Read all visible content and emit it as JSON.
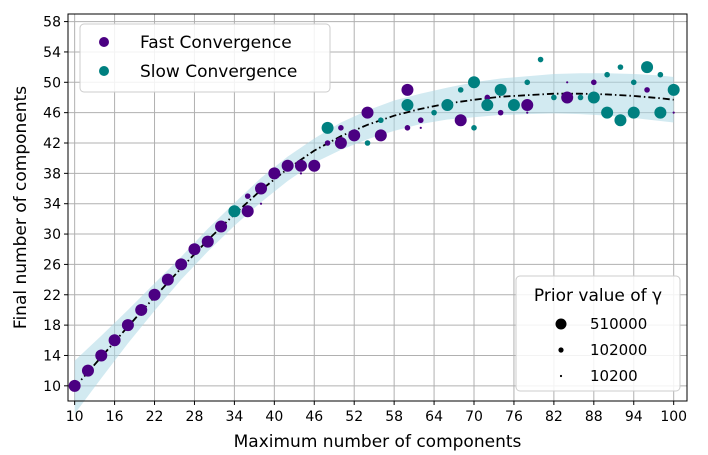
{
  "chart_data": {
    "type": "scatter",
    "title": "",
    "xlabel": "Maximum number of components",
    "ylabel": "Final number of components",
    "xlim": [
      9,
      102
    ],
    "ylim": [
      8,
      59
    ],
    "xticks": [
      10,
      16,
      22,
      28,
      34,
      40,
      46,
      52,
      58,
      64,
      70,
      76,
      82,
      88,
      94,
      100
    ],
    "yticks": [
      10,
      14,
      18,
      22,
      26,
      30,
      34,
      38,
      42,
      46,
      50,
      54,
      58
    ],
    "grid": true,
    "colors": {
      "fast": "#4b0082",
      "slow": "#008080",
      "band": "#add8e6",
      "trend": "#000000"
    },
    "series": [
      {
        "name": "Fast Convergence",
        "points": [
          {
            "x": 10,
            "y": 10,
            "gamma": 510000
          },
          {
            "x": 12,
            "y": 12,
            "gamma": 510000
          },
          {
            "x": 14,
            "y": 14,
            "gamma": 510000
          },
          {
            "x": 16,
            "y": 16,
            "gamma": 510000
          },
          {
            "x": 18,
            "y": 18,
            "gamma": 510000
          },
          {
            "x": 20,
            "y": 20,
            "gamma": 510000
          },
          {
            "x": 22,
            "y": 22,
            "gamma": 510000
          },
          {
            "x": 24,
            "y": 24,
            "gamma": 510000
          },
          {
            "x": 26,
            "y": 26,
            "gamma": 510000
          },
          {
            "x": 28,
            "y": 28,
            "gamma": 510000
          },
          {
            "x": 30,
            "y": 29,
            "gamma": 510000
          },
          {
            "x": 32,
            "y": 31,
            "gamma": 510000
          },
          {
            "x": 36,
            "y": 33,
            "gamma": 510000
          },
          {
            "x": 36,
            "y": 35,
            "gamma": 102000
          },
          {
            "x": 38,
            "y": 36,
            "gamma": 510000
          },
          {
            "x": 38,
            "y": 34,
            "gamma": 10200
          },
          {
            "x": 40,
            "y": 38,
            "gamma": 510000
          },
          {
            "x": 42,
            "y": 39,
            "gamma": 510000
          },
          {
            "x": 44,
            "y": 39,
            "gamma": 510000
          },
          {
            "x": 44,
            "y": 38,
            "gamma": 10200
          },
          {
            "x": 46,
            "y": 39,
            "gamma": 510000
          },
          {
            "x": 48,
            "y": 42,
            "gamma": 102000
          },
          {
            "x": 50,
            "y": 42,
            "gamma": 510000
          },
          {
            "x": 50,
            "y": 44,
            "gamma": 102000
          },
          {
            "x": 52,
            "y": 43,
            "gamma": 510000
          },
          {
            "x": 54,
            "y": 46,
            "gamma": 510000
          },
          {
            "x": 56,
            "y": 43,
            "gamma": 510000
          },
          {
            "x": 60,
            "y": 49,
            "gamma": 510000
          },
          {
            "x": 60,
            "y": 44,
            "gamma": 102000
          },
          {
            "x": 62,
            "y": 45,
            "gamma": 102000
          },
          {
            "x": 62,
            "y": 44,
            "gamma": 10200
          },
          {
            "x": 66,
            "y": 47,
            "gamma": 102000
          },
          {
            "x": 68,
            "y": 45,
            "gamma": 510000
          },
          {
            "x": 72,
            "y": 48,
            "gamma": 102000
          },
          {
            "x": 74,
            "y": 46,
            "gamma": 102000
          },
          {
            "x": 78,
            "y": 47,
            "gamma": 510000
          },
          {
            "x": 78,
            "y": 46,
            "gamma": 10200
          },
          {
            "x": 84,
            "y": 48,
            "gamma": 510000
          },
          {
            "x": 84,
            "y": 50,
            "gamma": 10200
          },
          {
            "x": 88,
            "y": 50,
            "gamma": 102000
          },
          {
            "x": 94,
            "y": 46,
            "gamma": 102000
          },
          {
            "x": 96,
            "y": 49,
            "gamma": 102000
          },
          {
            "x": 100,
            "y": 46,
            "gamma": 10200
          }
        ]
      },
      {
        "name": "Slow Convergence",
        "points": [
          {
            "x": 34,
            "y": 33,
            "gamma": 510000
          },
          {
            "x": 48,
            "y": 44,
            "gamma": 510000
          },
          {
            "x": 54,
            "y": 42,
            "gamma": 102000
          },
          {
            "x": 56,
            "y": 45,
            "gamma": 102000
          },
          {
            "x": 60,
            "y": 47,
            "gamma": 510000
          },
          {
            "x": 64,
            "y": 46,
            "gamma": 102000
          },
          {
            "x": 66,
            "y": 47,
            "gamma": 510000
          },
          {
            "x": 68,
            "y": 49,
            "gamma": 102000
          },
          {
            "x": 70,
            "y": 50,
            "gamma": 510000
          },
          {
            "x": 70,
            "y": 44,
            "gamma": 102000
          },
          {
            "x": 72,
            "y": 47,
            "gamma": 510000
          },
          {
            "x": 74,
            "y": 49,
            "gamma": 510000
          },
          {
            "x": 76,
            "y": 47,
            "gamma": 510000
          },
          {
            "x": 78,
            "y": 50,
            "gamma": 102000
          },
          {
            "x": 80,
            "y": 53,
            "gamma": 102000
          },
          {
            "x": 82,
            "y": 48,
            "gamma": 102000
          },
          {
            "x": 86,
            "y": 48,
            "gamma": 102000
          },
          {
            "x": 88,
            "y": 48,
            "gamma": 510000
          },
          {
            "x": 90,
            "y": 51,
            "gamma": 102000
          },
          {
            "x": 90,
            "y": 46,
            "gamma": 510000
          },
          {
            "x": 92,
            "y": 52,
            "gamma": 102000
          },
          {
            "x": 92,
            "y": 45,
            "gamma": 510000
          },
          {
            "x": 94,
            "y": 50,
            "gamma": 102000
          },
          {
            "x": 94,
            "y": 46,
            "gamma": 510000
          },
          {
            "x": 96,
            "y": 52,
            "gamma": 510000
          },
          {
            "x": 98,
            "y": 51,
            "gamma": 102000
          },
          {
            "x": 98,
            "y": 46,
            "gamma": 510000
          },
          {
            "x": 100,
            "y": 49,
            "gamma": 510000
          }
        ]
      }
    ],
    "trend": {
      "style": "dash-dot",
      "x": [
        10,
        14,
        18,
        22,
        26,
        30,
        34,
        38,
        42,
        46,
        50,
        54,
        58,
        62,
        66,
        70,
        74,
        78,
        82,
        86,
        90,
        94,
        98,
        100
      ],
      "y": [
        9.8,
        13.8,
        17.8,
        21.7,
        25.5,
        29.2,
        32.6,
        35.8,
        38.6,
        41.0,
        42.9,
        44.4,
        45.6,
        46.5,
        47.2,
        47.7,
        48.1,
        48.3,
        48.5,
        48.5,
        48.4,
        48.2,
        47.9,
        47.7
      ],
      "band_halfwidth": [
        3.5,
        2.8,
        2.2,
        1.8,
        1.5,
        1.5,
        1.5,
        1.6,
        1.6,
        1.6,
        1.8,
        1.9,
        2.0,
        2.0,
        2.1,
        2.3,
        2.4,
        2.5,
        2.6,
        2.7,
        2.8,
        2.9,
        3.0,
        3.0
      ]
    },
    "legend": {
      "position": "top-left",
      "entries": [
        "Fast Convergence",
        "Slow Convergence"
      ]
    },
    "size_legend": {
      "position": "bottom-right",
      "title": "Prior value of γ",
      "entries": [
        {
          "label": "510000",
          "gamma": 510000
        },
        {
          "label": "102000",
          "gamma": 102000
        },
        {
          "label": "10200",
          "gamma": 10200
        }
      ]
    }
  }
}
